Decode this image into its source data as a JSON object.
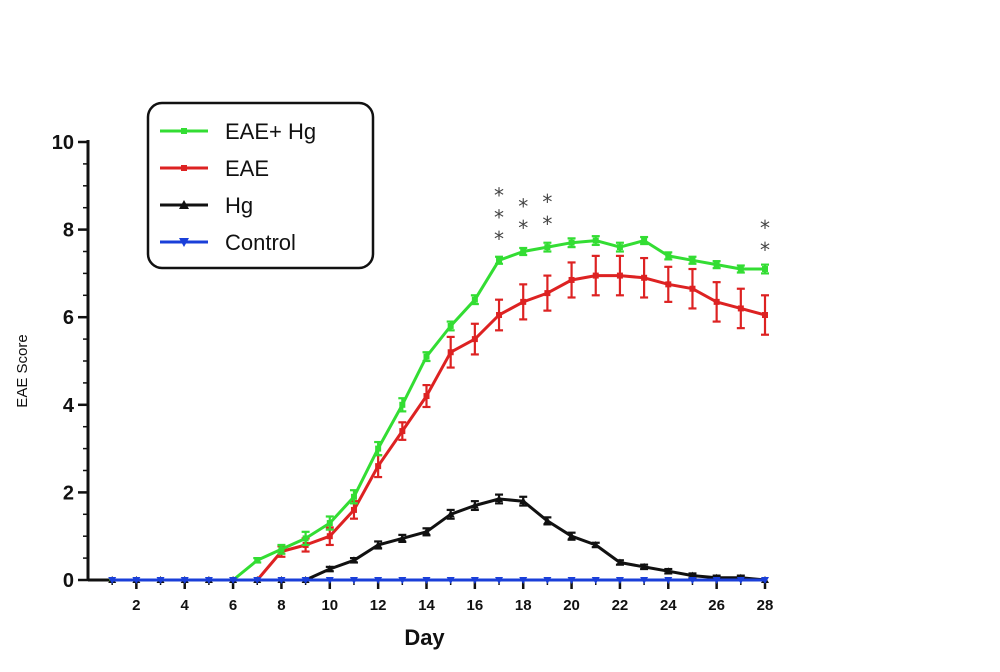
{
  "chart_data": {
    "type": "line",
    "title": "",
    "xlabel": "Day",
    "ylabel": "EAE Score",
    "xlim": [
      0,
      28
    ],
    "ylim": [
      0,
      10
    ],
    "x_ticks": [
      2,
      4,
      6,
      8,
      10,
      12,
      14,
      16,
      18,
      20,
      22,
      24,
      26,
      28
    ],
    "y_ticks": [
      0,
      2,
      4,
      6,
      8,
      10
    ],
    "grid": false,
    "legend_position": "top-left",
    "x": [
      1,
      2,
      3,
      4,
      5,
      6,
      7,
      8,
      9,
      10,
      11,
      12,
      13,
      14,
      15,
      16,
      17,
      18,
      19,
      20,
      21,
      22,
      23,
      24,
      25,
      26,
      27,
      28
    ],
    "series": [
      {
        "name": "EAE+ Hg",
        "color": "#33dd33",
        "values": [
          0,
          0,
          0,
          0,
          0,
          0,
          0.45,
          0.7,
          0.95,
          1.3,
          1.9,
          3.0,
          4.0,
          5.1,
          5.8,
          6.4,
          7.3,
          7.5,
          7.6,
          7.7,
          7.75,
          7.6,
          7.75,
          7.4,
          7.3,
          7.2,
          7.1,
          7.1
        ],
        "errors": [
          0,
          0,
          0,
          0,
          0,
          0,
          0.05,
          0.1,
          0.15,
          0.15,
          0.15,
          0.15,
          0.15,
          0.1,
          0.1,
          0.1,
          0.08,
          0.08,
          0.1,
          0.1,
          0.1,
          0.1,
          0.08,
          0.08,
          0.08,
          0.08,
          0.08,
          0.1
        ]
      },
      {
        "name": "EAE",
        "color": "#dd2222",
        "values": [
          0,
          0,
          0,
          0,
          0,
          0,
          0,
          0.65,
          0.8,
          1.0,
          1.6,
          2.6,
          3.4,
          4.2,
          5.2,
          5.5,
          6.05,
          6.35,
          6.55,
          6.85,
          6.95,
          6.95,
          6.9,
          6.75,
          6.65,
          6.35,
          6.2,
          6.05
        ],
        "errors": [
          0,
          0,
          0,
          0,
          0,
          0,
          0,
          0.12,
          0.15,
          0.2,
          0.2,
          0.25,
          0.2,
          0.25,
          0.35,
          0.35,
          0.35,
          0.4,
          0.4,
          0.4,
          0.45,
          0.45,
          0.45,
          0.4,
          0.45,
          0.45,
          0.45,
          0.45
        ]
      },
      {
        "name": "Hg",
        "color": "#111111",
        "values": [
          0,
          0,
          0,
          0,
          0,
          0,
          0,
          0,
          0,
          0.25,
          0.45,
          0.8,
          0.95,
          1.1,
          1.5,
          1.7,
          1.85,
          1.8,
          1.35,
          1.0,
          0.8,
          0.4,
          0.3,
          0.2,
          0.1,
          0.05,
          0.05,
          0.0
        ],
        "errors": [
          0,
          0,
          0,
          0,
          0,
          0,
          0,
          0,
          0,
          0.05,
          0.05,
          0.08,
          0.08,
          0.08,
          0.1,
          0.1,
          0.1,
          0.1,
          0.08,
          0.08,
          0.05,
          0.05,
          0.05,
          0.05,
          0.05,
          0.05,
          0.05,
          0.0
        ]
      },
      {
        "name": "Control",
        "color": "#1a3fd9",
        "values": [
          0,
          0,
          0,
          0,
          0,
          0,
          0,
          0,
          0,
          0,
          0,
          0,
          0,
          0,
          0,
          0,
          0,
          0,
          0,
          0,
          0,
          0,
          0,
          0,
          0,
          0,
          0,
          0
        ],
        "errors": [
          0,
          0,
          0,
          0,
          0,
          0,
          0,
          0,
          0,
          0,
          0,
          0,
          0,
          0,
          0,
          0,
          0,
          0,
          0,
          0,
          0,
          0,
          0,
          0,
          0,
          0,
          0,
          0
        ]
      }
    ],
    "annotations": [
      {
        "text": "*",
        "x": 17,
        "y": 7.85
      },
      {
        "text": "*",
        "x": 17,
        "y": 8.35
      },
      {
        "text": "*",
        "x": 17,
        "y": 8.85
      },
      {
        "text": "*",
        "x": 18,
        "y": 8.1
      },
      {
        "text": "*",
        "x": 18,
        "y": 8.6
      },
      {
        "text": "*",
        "x": 19,
        "y": 8.2
      },
      {
        "text": "*",
        "x": 19,
        "y": 8.7
      },
      {
        "text": "*",
        "x": 28,
        "y": 7.6
      },
      {
        "text": "*",
        "x": 28,
        "y": 8.1
      }
    ]
  }
}
